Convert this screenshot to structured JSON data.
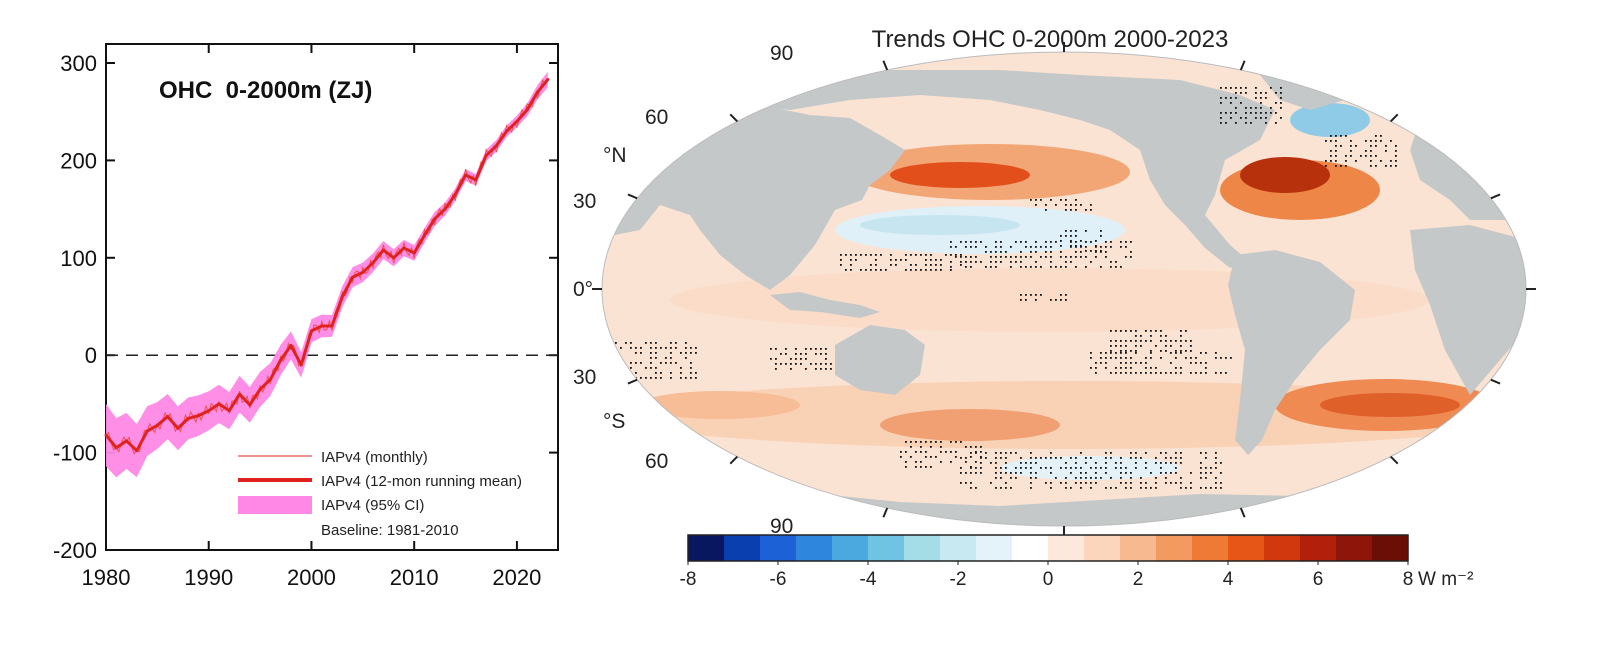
{
  "chart_data": [
    {
      "type": "line",
      "title": "OHC  0-2000m (ZJ)",
      "xlabel": "",
      "ylabel": "",
      "xlim": [
        1980,
        2024
      ],
      "ylim": [
        -200,
        320
      ],
      "xticks": [
        1980,
        1990,
        2000,
        2010,
        2020
      ],
      "xtick_labels": [
        "1980",
        "1990",
        "2000",
        "2010",
        "2020"
      ],
      "yticks": [
        -200,
        -100,
        0,
        100,
        200,
        300
      ],
      "ytick_labels": [
        "-200",
        "-100",
        "0",
        "100",
        "200",
        "300"
      ],
      "reference_line": 0,
      "series": [
        {
          "name": "IAPv4 (12-mon running mean)",
          "color": "#e0221f",
          "x": [
            1980,
            1981,
            1982,
            1983,
            1984,
            1985,
            1986,
            1987,
            1988,
            1989,
            1990,
            1991,
            1992,
            1993,
            1994,
            1995,
            1996,
            1997,
            1998,
            1999,
            2000,
            2001,
            2002,
            2003,
            2004,
            2005,
            2006,
            2007,
            2008,
            2009,
            2010,
            2011,
            2012,
            2013,
            2014,
            2015,
            2016,
            2017,
            2018,
            2019,
            2020,
            2021,
            2022,
            2023
          ],
          "values": [
            -82,
            -95,
            -88,
            -98,
            -78,
            -72,
            -63,
            -75,
            -65,
            -62,
            -57,
            -50,
            -57,
            -40,
            -51,
            -35,
            -25,
            -5,
            10,
            -10,
            25,
            30,
            30,
            60,
            80,
            85,
            95,
            108,
            100,
            110,
            105,
            123,
            140,
            150,
            165,
            185,
            180,
            205,
            215,
            230,
            240,
            252,
            270,
            283
          ]
        }
      ],
      "ci": {
        "name": "IAPv4 (95% CI)",
        "color": "#ff88e6",
        "x": [
          1980,
          1985,
          1990,
          1995,
          2000,
          2005,
          2010,
          2015,
          2020,
          2023
        ],
        "half_width": [
          32,
          24,
          20,
          18,
          12,
          10,
          8,
          6,
          6,
          8
        ]
      },
      "legend": {
        "position": "bottom-right",
        "entries": [
          {
            "label": "IAPv4 (monthly)",
            "style": "thin",
            "color": "#e0221f"
          },
          {
            "label": "IAPv4 (12-mon running mean)",
            "style": "thick",
            "color": "#e0221f"
          },
          {
            "label": "IAPv4 (95% CI)",
            "style": "band",
            "color": "#ff88e6"
          }
        ],
        "note": "Baseline: 1981-2010"
      }
    },
    {
      "type": "heatmap",
      "title": "Trends OHC 0-2000m 2000-2023",
      "projection": "Robinson",
      "lat_labels": [
        "90",
        "60",
        "30",
        "0°",
        "30",
        "60",
        "90"
      ],
      "lat_values": [
        90,
        60,
        30,
        0,
        -30,
        -60,
        -90
      ],
      "hemisphere_labels": [
        "°N",
        "°S"
      ],
      "colorbar": {
        "min": -8,
        "max": 8,
        "step": 0.8,
        "tick_values": [
          -8,
          -6,
          -4,
          -2,
          0,
          2,
          4,
          6,
          8
        ],
        "tick_labels": [
          "-8",
          "-6",
          "-4",
          "-2",
          "0",
          "2",
          "4",
          "6",
          "8"
        ],
        "unit": "W m⁻²",
        "colors": [
          "#08175f",
          "#0a3fb0",
          "#1c61d6",
          "#2f86dd",
          "#4ba9df",
          "#6fc3e3",
          "#a4dde6",
          "#c9e9f2",
          "#e3f3f9",
          "#ffffff",
          "#fde9dc",
          "#fbd5bc",
          "#f7b98f",
          "#f39a61",
          "#ee7a36",
          "#e65717",
          "#d2380d",
          "#b21f0a",
          "#8e1509",
          "#6b0e06"
        ]
      },
      "colors": {
        "land": "#c5c8c8",
        "ocean_base": "#fbe3d4"
      }
    }
  ]
}
